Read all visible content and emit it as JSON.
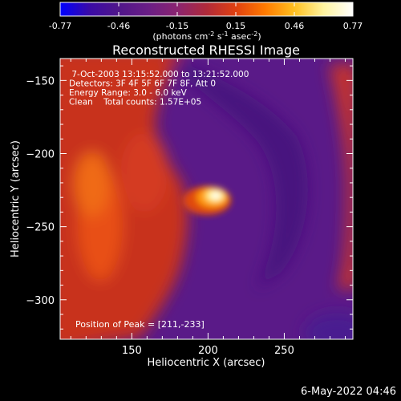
{
  "colorbar": {
    "ticks": [
      "-0.77",
      "-0.46",
      "-0.15",
      "0.15",
      "0.46",
      "0.77"
    ],
    "units_prefix": "(photons cm",
    "units_sup1": "-2",
    "units_mid": " s",
    "units_sup2": "-1",
    "units_mid2": " asec",
    "units_sup3": "-2",
    "units_suffix": ")",
    "colormap": [
      "#0000ff",
      "#3a0aa6",
      "#50168a",
      "#6a1e86",
      "#8a2470",
      "#b02a3a",
      "#e04010",
      "#ff7a00",
      "#ffc020",
      "#fff4a0",
      "#ffffff"
    ]
  },
  "panel": {
    "info_lines": [
      " 7-Oct-2003 13:15:52.000 to 13:21:52.000",
      "Detectors: 3F 4F 5F 6F 7F 8F, Att 0",
      "Energy Range: 3.0 - 6.0 keV",
      "Clean    Total counts: 1.57E+05"
    ],
    "peak_label": "Position of Peak = [211,-233]"
  },
  "chart_data": {
    "type": "heatmap",
    "title": "Reconstructed RHESSI Image",
    "xlabel": "Heliocentric X (arcsec)",
    "ylabel": "Heliocentric Y (arcsec)",
    "xlim": [
      103,
      295
    ],
    "ylim": [
      -327,
      -135
    ],
    "x_ticks": [
      150,
      200,
      250
    ],
    "y_ticks": [
      -150,
      -200,
      -250,
      -300
    ],
    "colorbar_range": [
      -0.77,
      0.77
    ],
    "peak": {
      "x": 211,
      "y": -233,
      "value": 0.77
    }
  },
  "footer": {
    "date": "6-May-2022 04:46"
  }
}
